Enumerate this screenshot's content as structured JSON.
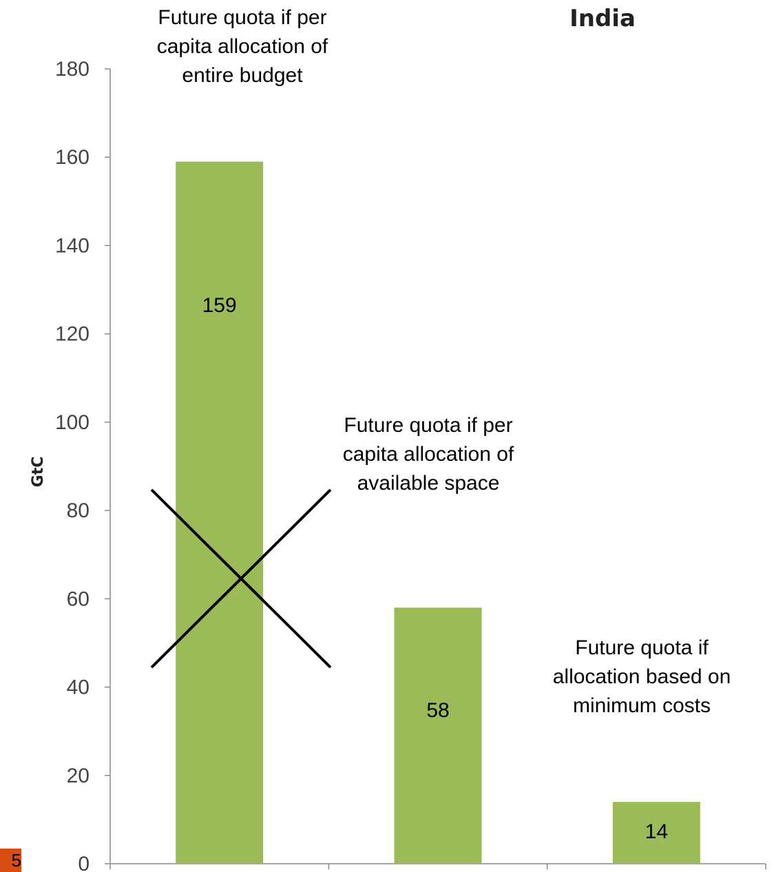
{
  "slide_number": "5",
  "chart_data": {
    "type": "bar",
    "title": "India",
    "ylabel": "GtC",
    "xlabel": "",
    "ylim": [
      0,
      180
    ],
    "yticks": [
      0,
      20,
      40,
      60,
      80,
      100,
      120,
      140,
      160,
      180
    ],
    "grid": false,
    "categories": [
      "Future quota if  per capita allocation of entire budget",
      "Future quota if  per capita allocation of available space",
      "Future quota if allocation based on minimum costs"
    ],
    "values": [
      159,
      58,
      14
    ],
    "data_labels": [
      "159",
      "58",
      "14"
    ],
    "bar_color": "#9bbb59",
    "annotations": [
      {
        "lines": [
          "Future quota if  per",
          "capita allocation of",
          "entire budget"
        ]
      },
      {
        "lines": [
          "Future quota if  per",
          "capita allocation of",
          "available space"
        ]
      },
      {
        "lines": [
          "Future quota if",
          "allocation based on",
          "minimum costs"
        ]
      }
    ],
    "crossed_out_category_index": 0
  }
}
